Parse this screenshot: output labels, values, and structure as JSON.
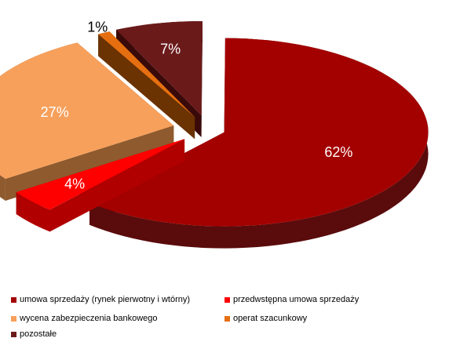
{
  "chart_data": {
    "type": "pie",
    "style": "3d-exploded",
    "slices": [
      {
        "label": "umowa sprzedaży (rynek pierwotny i wtórny)",
        "value": 62,
        "display": "62%",
        "color": "#a30000",
        "side": "#5a0b0b"
      },
      {
        "label": "przedwstępna umowa sprzedaży",
        "value": 4,
        "display": "4%",
        "color": "#ff0000",
        "side": "#b00000"
      },
      {
        "label": "wycena zabezpieczenia bankowego",
        "value": 27,
        "display": "27%",
        "color": "#f7a05c",
        "side": "#8e5a2e"
      },
      {
        "label": "operat szacunkowy",
        "value": 1,
        "display": "1%",
        "color": "#e56f10",
        "side": "#6b3202"
      },
      {
        "label": "pozostałe",
        "value": 7,
        "display": "7%",
        "color": "#6b1a1a",
        "side": "#3a0a0a"
      }
    ],
    "legend_position": "bottom"
  }
}
